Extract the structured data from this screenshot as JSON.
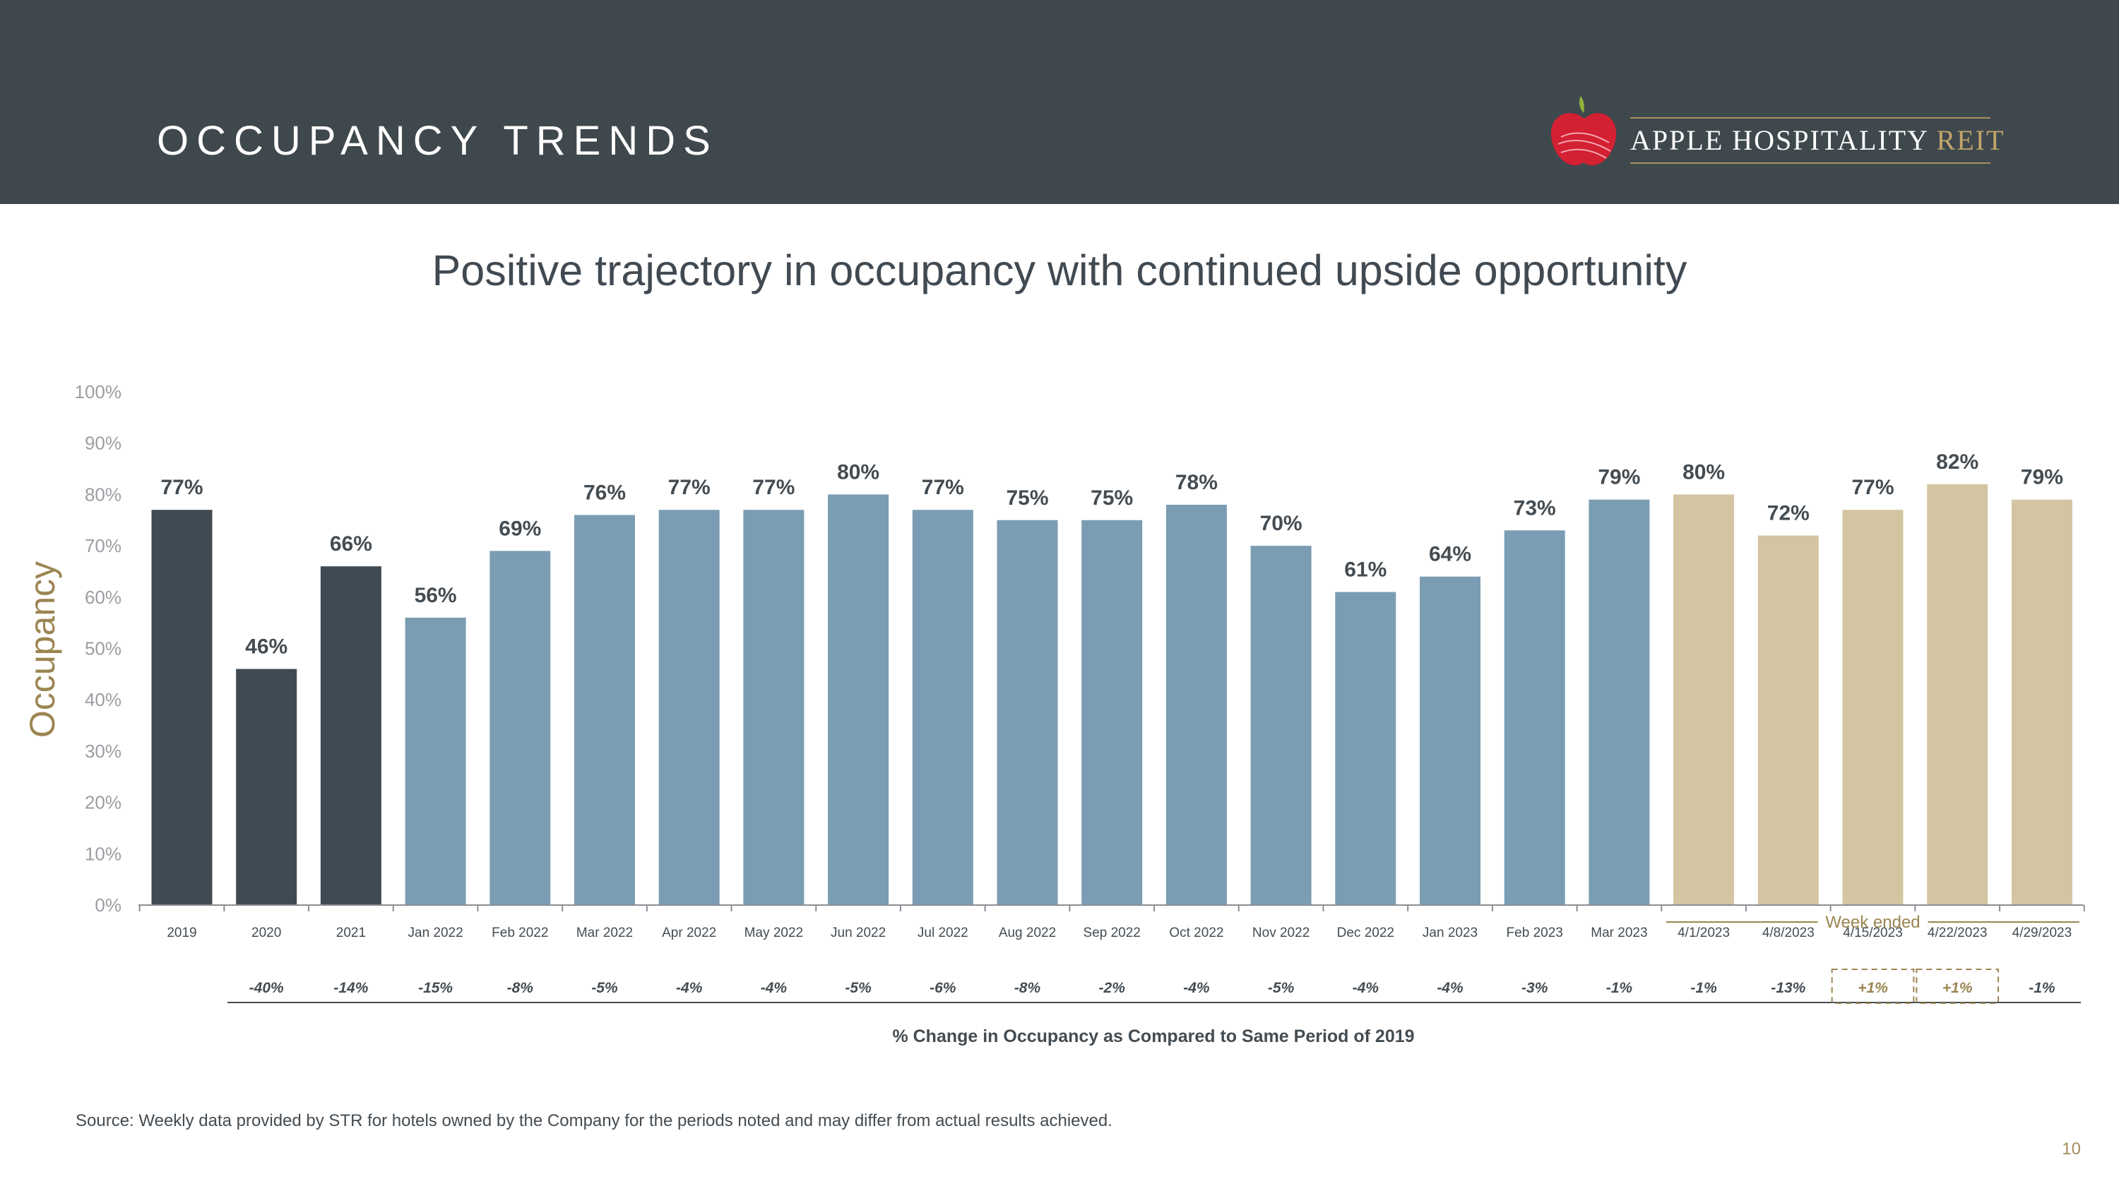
{
  "header": {
    "title": "OCCUPANCY TRENDS",
    "logo_main": "APPLE HOSPITALITY",
    "logo_accent": "REIT"
  },
  "subtitle": "Positive trajectory in occupancy with continued upside opportunity",
  "footnote": "Source:  Weekly data provided by STR for hotels owned by the Company for the periods noted and may differ from actual results achieved.",
  "page_number": "10",
  "colors": {
    "header_bg": "#3f484d",
    "annual_bar": "#404a52",
    "monthly_bar": "#7b9db4",
    "weekly_bar": "#d4c5a2",
    "gold_accent": "#9b8551"
  },
  "chart_data": {
    "type": "bar",
    "title": "",
    "ylabel": "Occupancy",
    "ylim": [
      0,
      100
    ],
    "ytick_labels": [
      "0%",
      "10%",
      "20%",
      "30%",
      "40%",
      "50%",
      "60%",
      "70%",
      "80%",
      "90%",
      "100%"
    ],
    "categories": [
      "2019",
      "2020",
      "2021",
      "Jan 2022",
      "Feb 2022",
      "Mar 2022",
      "Apr 2022",
      "May 2022",
      "Jun 2022",
      "Jul 2022",
      "Aug 2022",
      "Sep 2022",
      "Oct 2022",
      "Nov 2022",
      "Dec 2022",
      "Jan 2023",
      "Feb 2023",
      "Mar 2023",
      "4/1/2023",
      "4/8/2023",
      "4/15/2023",
      "4/22/2023",
      "4/29/2023"
    ],
    "values": [
      77,
      46,
      66,
      56,
      69,
      76,
      77,
      77,
      80,
      77,
      75,
      75,
      78,
      70,
      61,
      64,
      73,
      79,
      80,
      72,
      77,
      82,
      79
    ],
    "value_labels": [
      "77%",
      "46%",
      "66%",
      "56%",
      "69%",
      "76%",
      "77%",
      "77%",
      "80%",
      "77%",
      "75%",
      "75%",
      "78%",
      "70%",
      "61%",
      "64%",
      "73%",
      "79%",
      "80%",
      "72%",
      "77%",
      "82%",
      "79%"
    ],
    "groups": [
      "annual",
      "annual",
      "annual",
      "monthly",
      "monthly",
      "monthly",
      "monthly",
      "monthly",
      "monthly",
      "monthly",
      "monthly",
      "monthly",
      "monthly",
      "monthly",
      "monthly",
      "monthly",
      "monthly",
      "monthly",
      "weekly",
      "weekly",
      "weekly",
      "weekly",
      "weekly"
    ],
    "week_group_label": "Week ended",
    "change_row": {
      "title": "% Change in Occupancy as Compared to Same Period of 2019",
      "values": [
        "",
        "-40%",
        "-14%",
        "-15%",
        "-8%",
        "-5%",
        "-4%",
        "-4%",
        "-5%",
        "-6%",
        "-8%",
        "-2%",
        "-4%",
        "-5%",
        "-4%",
        "-4%",
        "-3%",
        "-1%",
        "-1%",
        "-13%",
        "+1%",
        "+1%",
        "-1%"
      ],
      "highlighted": [
        false,
        false,
        false,
        false,
        false,
        false,
        false,
        false,
        false,
        false,
        false,
        false,
        false,
        false,
        false,
        false,
        false,
        false,
        false,
        false,
        true,
        true,
        false
      ]
    },
    "grid": false,
    "legend": "none"
  }
}
